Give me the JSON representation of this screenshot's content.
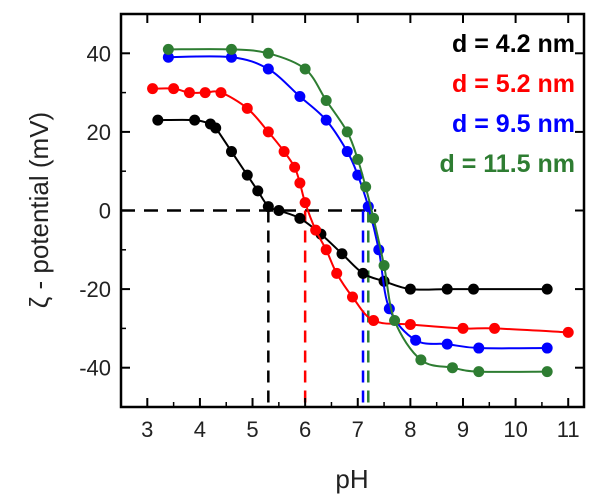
{
  "chart_data": {
    "type": "scatter",
    "title": "",
    "xlabel": "pH",
    "ylabel": "ζ - potential (mV)",
    "xlim": [
      2.5,
      11.3
    ],
    "ylim": [
      -50,
      50
    ],
    "x_ticks": [
      3,
      4,
      5,
      6,
      7,
      8,
      9,
      10,
      11
    ],
    "y_ticks": [
      -40,
      -20,
      0,
      20,
      40
    ],
    "grid": false,
    "legend_position": "top-right",
    "zero_reference": {
      "y": 0,
      "x_end": 7.35,
      "style": "dashed",
      "color": "#000000"
    },
    "series": [
      {
        "name": "d = 4.2 nm",
        "color": "#000000",
        "isoelectric_point": 5.3,
        "x": [
          3.2,
          3.9,
          4.2,
          4.3,
          4.6,
          4.9,
          5.1,
          5.3,
          5.5,
          5.9,
          6.3,
          6.7,
          7.1,
          7.5,
          8.0,
          8.7,
          9.2,
          10.6
        ],
        "y": [
          23,
          23,
          22,
          21,
          15,
          9,
          5,
          1,
          0,
          -2,
          -6,
          -11,
          -16,
          -18,
          -20,
          -20,
          -20,
          -20
        ]
      },
      {
        "name": "d = 5.2 nm",
        "color": "#ff0000",
        "isoelectric_point": 6.0,
        "x": [
          3.1,
          3.5,
          3.8,
          4.1,
          4.4,
          4.9,
          5.3,
          5.6,
          5.8,
          5.9,
          6.0,
          6.2,
          6.4,
          6.6,
          6.9,
          7.3,
          8.0,
          9.0,
          9.6,
          11.0
        ],
        "y": [
          31,
          31,
          30,
          30,
          30,
          26,
          20,
          15,
          11,
          7,
          2,
          -5,
          -10,
          -16,
          -22,
          -28,
          -29,
          -30,
          -30,
          -31
        ]
      },
      {
        "name": "d = 9.5 nm",
        "color": "#0000ff",
        "isoelectric_point": 7.1,
        "x": [
          3.4,
          4.6,
          5.3,
          5.9,
          6.4,
          6.8,
          7.0,
          7.2,
          7.4,
          7.6,
          8.1,
          8.7,
          9.3,
          10.6
        ],
        "y": [
          39,
          39,
          36,
          29,
          23,
          15,
          9,
          1,
          -10,
          -25,
          -33,
          -34,
          -35,
          -35
        ]
      },
      {
        "name": "d = 11.5 nm",
        "color": "#2e7d32",
        "isoelectric_point": 7.2,
        "x": [
          3.4,
          4.6,
          5.3,
          6.0,
          6.4,
          6.8,
          7.0,
          7.15,
          7.3,
          7.5,
          7.7,
          8.2,
          8.8,
          9.3,
          10.6
        ],
        "y": [
          41,
          41,
          40,
          36,
          28,
          20,
          13,
          6,
          -2,
          -14,
          -28,
          -38,
          -40,
          -41,
          -41
        ]
      }
    ]
  }
}
